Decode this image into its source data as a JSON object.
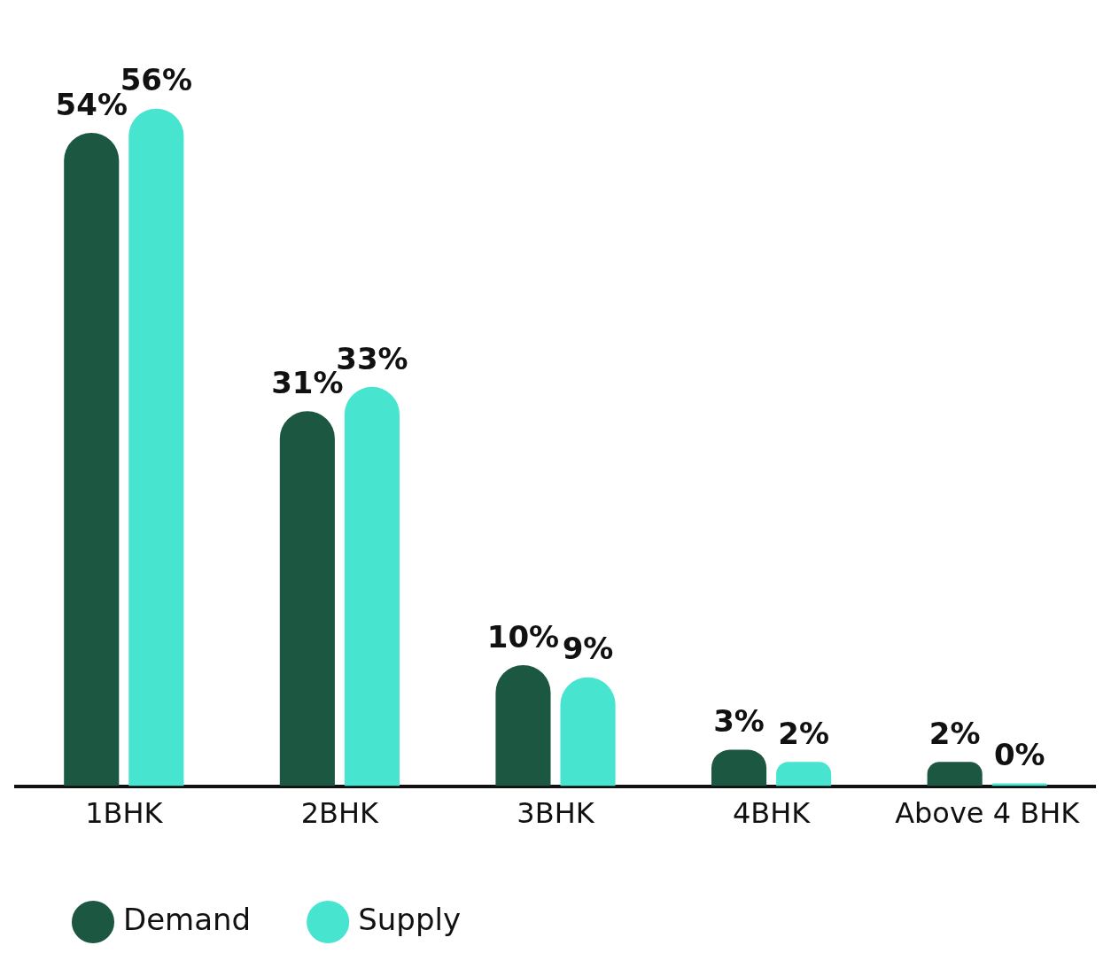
{
  "chart_data": {
    "type": "bar",
    "categories": [
      "1BHK",
      "2BHK",
      "3BHK",
      "4BHK",
      "Above 4 BHK"
    ],
    "series": [
      {
        "name": "Demand",
        "color": "#1b5741",
        "values": [
          54,
          31,
          10,
          3,
          2
        ],
        "value_labels": [
          "54%",
          "31%",
          "10%",
          "3%",
          "2%"
        ]
      },
      {
        "name": "Supply",
        "color": "#47e5cf",
        "values": [
          56,
          33,
          9,
          2,
          0
        ],
        "value_labels": [
          "56%",
          "33%",
          "9%",
          "2%",
          "0%"
        ]
      }
    ],
    "legend": "bottom left",
    "grid": false,
    "tick_labels": "x"
  }
}
